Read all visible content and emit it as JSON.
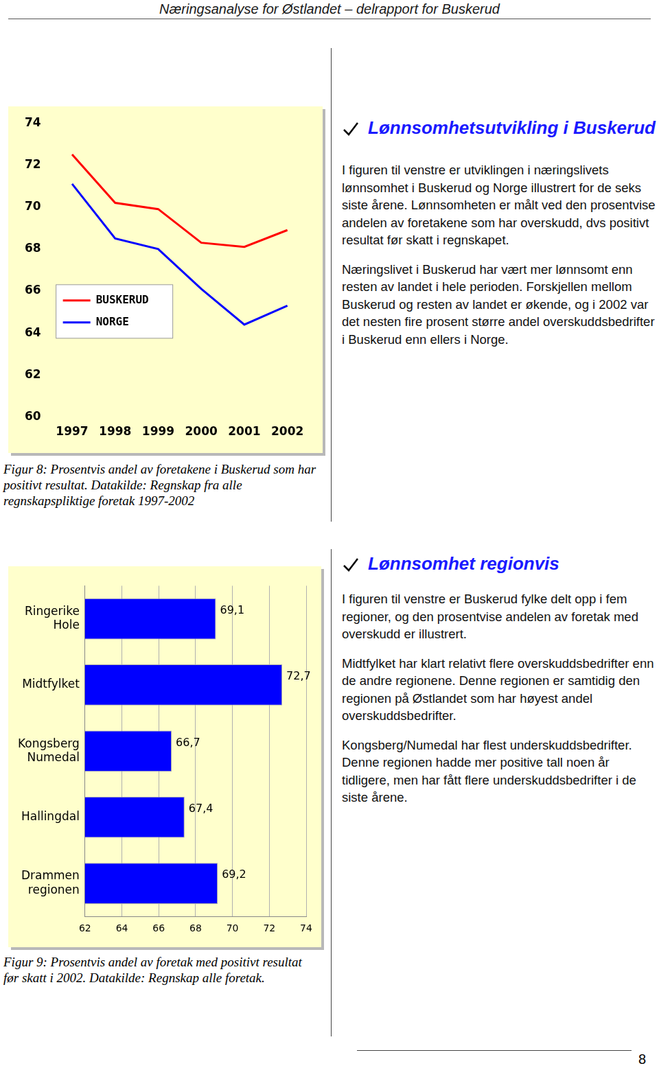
{
  "header": {
    "title": "Næringsanalyse for Østlandet – delrapport for Buskerud"
  },
  "chart_data": [
    {
      "type": "line",
      "categories": [
        "1997",
        "1998",
        "1999",
        "2000",
        "2001",
        "2002"
      ],
      "series": [
        {
          "name": "BUSKERUD",
          "color": "#ff0000",
          "values": [
            72.5,
            70.2,
            69.9,
            68.3,
            68.1,
            68.9
          ]
        },
        {
          "name": "NORGE",
          "color": "#0000ff",
          "values": [
            71.1,
            68.5,
            68.0,
            66.1,
            64.4,
            65.3
          ]
        }
      ],
      "ylim": [
        60,
        74
      ],
      "yticks": [
        60,
        62,
        64,
        66,
        68,
        70,
        72,
        74
      ],
      "grid": false,
      "legend": "lower left"
    },
    {
      "type": "bar",
      "orientation": "horizontal",
      "categories": [
        [
          "Ringerike",
          "Hole"
        ],
        "Midtfylket",
        [
          "Kongsberg",
          "Numedal"
        ],
        "Hallingdal",
        [
          "Drammen",
          "regionen"
        ]
      ],
      "values": [
        69.1,
        72.7,
        66.7,
        67.4,
        69.2
      ],
      "value_labels": [
        "69,1",
        "72,7",
        "66,7",
        "67,4",
        "69,2"
      ],
      "data_labels": true,
      "color": "#0000ff",
      "xlim": [
        62,
        74
      ],
      "xticks": [
        62,
        64,
        66,
        68,
        70,
        72,
        74
      ],
      "grid": true
    }
  ],
  "sections": [
    {
      "heading": "Lønnsomhetsutvikling i Buskerud",
      "paragraphs": [
        "I figuren til venstre er utviklingen i næringslivets lønnsomhet i Buskerud og Norge illustrert for de seks siste årene. Lønnsomheten er målt ved den prosentvise andelen av foretakene som har overskudd, dvs positivt resultat før skatt i regnskapet.",
        "Næringslivet i Buskerud har vært mer lønnsomt enn resten av landet i hele perioden. Forskjellen mellom Buskerud og resten av landet er økende, og i 2002 var det nesten fire prosent større andel overskuddsbedrifter i Buskerud enn ellers i Norge."
      ]
    },
    {
      "heading": "Lønnsomhet regionvis",
      "paragraphs": [
        "I figuren til venstre er Buskerud fylke delt opp i fem regioner, og den prosentvise andelen av foretak med overskudd er illustrert.",
        "Midtfylket har klart relativt flere overskuddsbedrifter enn de andre regionene. Denne regionen er samtidig den regionen på Østlandet som har høyest andel overskuddsbedrifter.",
        "Kongsberg/Numedal har flest underskuddsbedrifter. Denne regionen hadde mer positive tall noen år tidligere, men har fått flere underskuddsbedrifter i de siste årene."
      ]
    }
  ],
  "captions": [
    "Figur 8: Prosentvis andel av foretakene i Buskerud som har positivt resultat. Datakilde: Regnskap fra alle regnskapspliktige foretak 1997-2002",
    "Figur 9: Prosentvis andel av foretak med positivt resultat før skatt i 2002. Datakilde: Regnskap alle foretak."
  ],
  "page_number": 8
}
